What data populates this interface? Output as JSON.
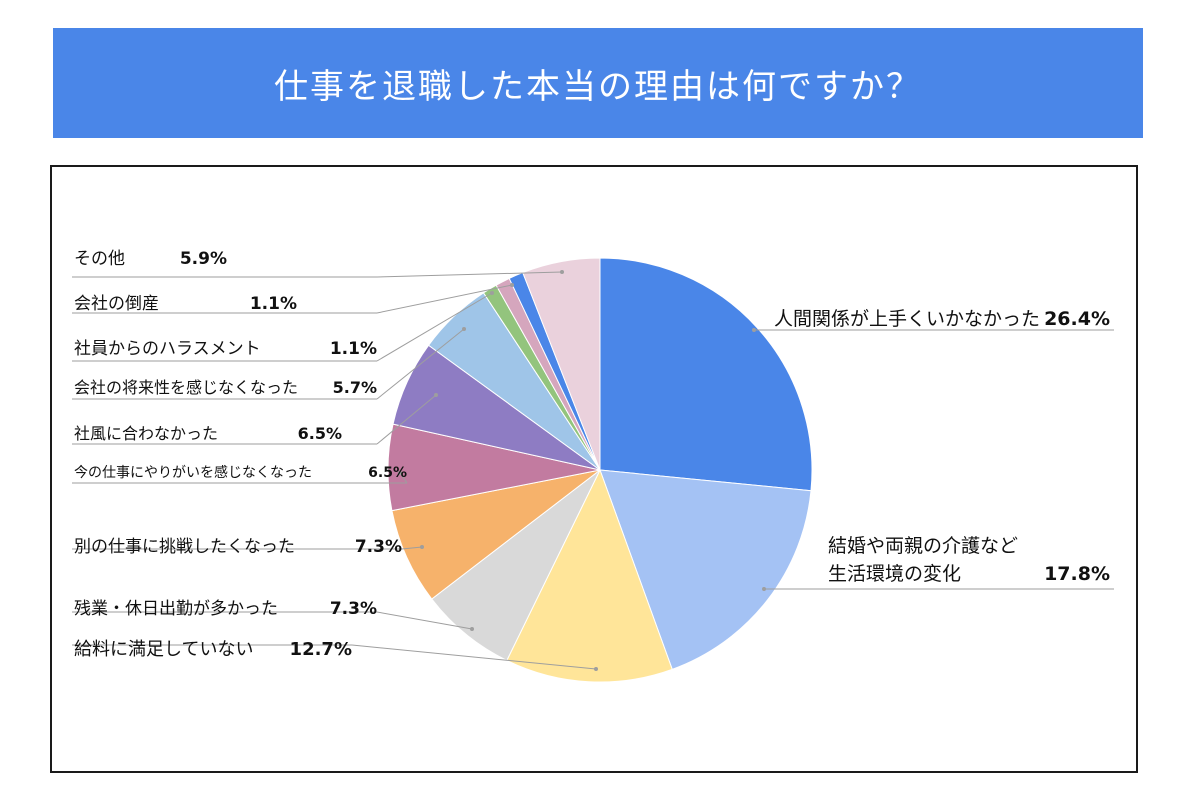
{
  "header": {
    "title": "仕事を退職した本当の理由は何ですか？"
  },
  "chart_data": {
    "type": "pie",
    "title": "仕事を退職した本当の理由は何ですか？",
    "unit": "%",
    "slices": [
      {
        "label": "人間関係が上手くいかなかった",
        "value": 26.4,
        "value_label": "26.4%",
        "color": "#4a86e8"
      },
      {
        "label": "結婚や両親の介護など",
        "label_line2": "生活環境の変化",
        "value": 17.8,
        "value_label": "17.8%",
        "color": "#a4c2f4"
      },
      {
        "label": "給料に満足していない",
        "value": 12.7,
        "value_label": "12.7%",
        "color": "#ffe599"
      },
      {
        "label": "残業・休日出勤が多かった",
        "value": 7.3,
        "value_label": "7.3%",
        "color": "#d9d9d9"
      },
      {
        "label": "別の仕事に挑戦したくなった",
        "value": 7.3,
        "value_label": "7.3%",
        "color": "#f6b26b"
      },
      {
        "label": "今の仕事にやりがいを感じなくなった",
        "value": 6.5,
        "value_label": "6.5%",
        "color": "#c27ba0"
      },
      {
        "label": "社風に合わなかった",
        "value": 6.5,
        "value_label": "6.5%",
        "color": "#8e7cc3"
      },
      {
        "label": "会社の将来性を感じなくなった",
        "value": 5.7,
        "value_label": "5.7%",
        "color": "#9fc5e8"
      },
      {
        "label": "社員からのハラスメント",
        "value": 1.1,
        "value_label": "1.1%",
        "color": "#93c47d"
      },
      {
        "label": "会社の倒産",
        "value": 1.1,
        "value_label": "1.1%",
        "color": "#d5a6bd"
      },
      {
        "label": "その他",
        "value": 5.9,
        "value_label": "5.9%",
        "color": "#ead1dc"
      }
    ],
    "extra_slices": [
      {
        "value": 1.1,
        "color": "#4a86e8"
      }
    ],
    "legend": "none",
    "labels": "outside-with-leader-lines"
  }
}
